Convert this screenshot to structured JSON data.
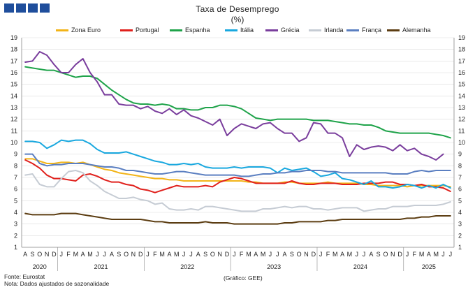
{
  "header": {
    "title": "Taxa de Desemprego",
    "subtitle": "(%)"
  },
  "footer": {
    "source": "Fonte: Eurostat",
    "note": "Nota: Dados ajustados de sazonalidade",
    "credit": "(Gráfico: GEE)"
  },
  "chart_data": {
    "type": "line",
    "title": "Taxa de Desemprego",
    "subtitle": "(%)",
    "ylim": [
      1,
      19
    ],
    "yticks": [
      1,
      2,
      3,
      4,
      5,
      6,
      7,
      8,
      9,
      10,
      11,
      12,
      13,
      14,
      15,
      16,
      17,
      18,
      19
    ],
    "grid": true,
    "legend_position": "top",
    "month_labels": [
      "A",
      "S",
      "O",
      "N",
      "D",
      "J",
      "F",
      "M",
      "A",
      "M",
      "J",
      "J",
      "A",
      "S",
      "O",
      "N",
      "D",
      "J",
      "F",
      "M",
      "A",
      "M",
      "J",
      "J",
      "A",
      "S",
      "O",
      "N",
      "D",
      "J",
      "F",
      "M",
      "A",
      "M",
      "J",
      "J",
      "A",
      "S",
      "O",
      "N",
      "D",
      "J",
      "F",
      "M",
      "A",
      "M",
      "J",
      "J",
      "A",
      "S",
      "O",
      "N",
      "D",
      "J",
      "F",
      "M",
      "A",
      "M",
      "J",
      "J"
    ],
    "years": [
      {
        "label": "2020",
        "start": 0,
        "end": 4
      },
      {
        "label": "2021",
        "start": 5,
        "end": 16
      },
      {
        "label": "2022",
        "start": 17,
        "end": 28
      },
      {
        "label": "2023",
        "start": 29,
        "end": 40
      },
      {
        "label": "2024",
        "start": 41,
        "end": 52
      },
      {
        "label": "2025",
        "start": 53,
        "end": 59
      }
    ],
    "series": [
      {
        "name": "Zona Euro",
        "color": "#f2b418",
        "values": [
          8.6,
          8.6,
          8.4,
          8.2,
          8.2,
          8.3,
          8.3,
          8.2,
          8.3,
          8.1,
          7.9,
          7.7,
          7.6,
          7.4,
          7.3,
          7.2,
          7.1,
          7.0,
          6.9,
          6.9,
          6.8,
          6.8,
          6.7,
          6.7,
          6.7,
          6.7,
          6.7,
          6.7,
          6.7,
          6.7,
          6.7,
          6.6,
          6.6,
          6.5,
          6.5,
          6.5,
          6.6,
          6.6,
          6.5,
          6.5,
          6.5,
          6.5,
          6.6,
          6.5,
          6.5,
          6.5,
          6.5,
          6.4,
          6.4,
          6.3,
          6.3,
          6.3,
          6.3,
          6.2,
          6.3,
          6.3,
          6.3,
          6.3,
          6.3,
          6.2
        ]
      },
      {
        "name": "Portugal",
        "color": "#e0201c",
        "values": [
          8.5,
          8.2,
          7.8,
          7.2,
          6.9,
          6.9,
          6.8,
          6.7,
          7.2,
          7.3,
          7.1,
          6.8,
          6.6,
          6.6,
          6.4,
          6.3,
          6.0,
          5.9,
          5.7,
          5.9,
          6.1,
          6.3,
          6.2,
          6.2,
          6.2,
          6.3,
          6.2,
          6.6,
          6.8,
          7.0,
          6.9,
          6.7,
          6.5,
          6.5,
          6.5,
          6.5,
          6.5,
          6.7,
          6.5,
          6.4,
          6.4,
          6.5,
          6.5,
          6.5,
          6.4,
          6.4,
          6.4,
          6.5,
          6.5,
          6.5,
          6.6,
          6.6,
          6.4,
          6.4,
          6.3,
          6.4,
          6.2,
          6.2,
          6.1,
          5.8
        ]
      },
      {
        "name": "Espanha",
        "color": "#1fa34a",
        "values": [
          16.5,
          16.4,
          16.3,
          16.2,
          16.2,
          16.0,
          15.8,
          15.6,
          15.7,
          15.7,
          15.5,
          15.0,
          14.5,
          14.1,
          13.7,
          13.4,
          13.3,
          13.3,
          13.2,
          13.3,
          13.2,
          12.9,
          12.9,
          12.8,
          12.8,
          13.0,
          13.0,
          13.2,
          13.2,
          13.1,
          12.9,
          12.5,
          12.1,
          12.0,
          11.9,
          12.0,
          12.0,
          12.0,
          12.0,
          12.0,
          11.9,
          11.9,
          11.9,
          11.8,
          11.7,
          11.6,
          11.6,
          11.5,
          11.5,
          11.3,
          11.0,
          10.9,
          10.8,
          10.8,
          10.8,
          10.8,
          10.8,
          10.7,
          10.6,
          10.4
        ]
      },
      {
        "name": "Itália",
        "color": "#19a8df",
        "values": [
          10.1,
          10.1,
          10.0,
          9.5,
          9.8,
          10.2,
          10.1,
          10.2,
          10.2,
          9.9,
          9.4,
          9.1,
          9.1,
          9.1,
          9.2,
          9.0,
          8.8,
          8.6,
          8.4,
          8.3,
          8.1,
          8.1,
          8.2,
          8.1,
          8.2,
          7.9,
          7.8,
          7.8,
          7.8,
          7.9,
          7.8,
          7.9,
          7.9,
          7.9,
          7.8,
          7.4,
          7.8,
          7.6,
          7.7,
          7.8,
          7.5,
          7.1,
          7.2,
          7.4,
          6.9,
          6.8,
          6.6,
          6.4,
          6.7,
          6.2,
          6.2,
          6.1,
          6.2,
          6.4,
          6.3,
          6.1,
          6.3,
          6.1,
          6.4,
          6.1
        ]
      },
      {
        "name": "Grécia",
        "color": "#7a3e9d",
        "values": [
          16.9,
          17.0,
          17.8,
          17.5,
          16.7,
          16.0,
          16.0,
          16.7,
          17.2,
          16.0,
          15.2,
          14.1,
          14.1,
          13.3,
          13.2,
          13.2,
          12.9,
          13.1,
          12.7,
          12.5,
          12.9,
          12.4,
          12.8,
          12.3,
          12.1,
          11.8,
          11.5,
          12.0,
          10.6,
          11.2,
          11.6,
          11.4,
          11.2,
          11.6,
          11.7,
          11.2,
          10.8,
          10.8,
          10.1,
          10.4,
          11.7,
          11.6,
          10.8,
          10.8,
          10.4,
          8.8,
          9.8,
          9.4,
          9.6,
          9.7,
          9.6,
          9.3,
          9.8,
          9.3,
          9.5,
          9.0,
          8.8,
          8.5,
          9.0,
          null
        ]
      },
      {
        "name": "Irlanda",
        "color": "#c6ccd4",
        "values": [
          7.2,
          7.3,
          6.4,
          6.2,
          6.2,
          6.9,
          7.5,
          7.6,
          7.4,
          6.7,
          6.3,
          5.8,
          5.5,
          5.2,
          5.2,
          5.3,
          5.1,
          5.0,
          4.7,
          4.8,
          4.3,
          4.2,
          4.2,
          4.3,
          4.2,
          4.5,
          4.5,
          4.4,
          4.3,
          4.2,
          4.1,
          4.1,
          4.1,
          4.3,
          4.3,
          4.4,
          4.5,
          4.4,
          4.5,
          4.5,
          4.3,
          4.3,
          4.2,
          4.3,
          4.4,
          4.4,
          4.4,
          4.1,
          4.2,
          4.3,
          4.3,
          4.5,
          4.5,
          4.5,
          4.6,
          4.6,
          4.6,
          4.6,
          4.7,
          4.9
        ]
      },
      {
        "name": "França",
        "color": "#5b7fc1",
        "values": [
          9.0,
          9.0,
          8.2,
          8.0,
          8.1,
          8.1,
          8.2,
          8.2,
          8.2,
          8.1,
          8.0,
          7.9,
          7.9,
          7.8,
          7.6,
          7.6,
          7.5,
          7.4,
          7.3,
          7.3,
          7.4,
          7.5,
          7.5,
          7.4,
          7.3,
          7.2,
          7.2,
          7.2,
          7.2,
          7.2,
          7.1,
          7.1,
          7.2,
          7.3,
          7.3,
          7.4,
          7.4,
          7.5,
          7.5,
          7.6,
          7.6,
          7.6,
          7.5,
          7.5,
          7.4,
          7.4,
          7.4,
          7.4,
          7.4,
          7.4,
          7.4,
          7.3,
          7.3,
          7.3,
          7.5,
          7.6,
          7.5,
          7.6,
          7.6,
          7.6
        ]
      },
      {
        "name": "Alemanha",
        "color": "#5c3d12",
        "values": [
          3.9,
          3.8,
          3.8,
          3.8,
          3.8,
          3.9,
          3.9,
          3.9,
          3.8,
          3.7,
          3.6,
          3.5,
          3.4,
          3.4,
          3.4,
          3.4,
          3.4,
          3.3,
          3.2,
          3.2,
          3.1,
          3.1,
          3.1,
          3.1,
          3.1,
          3.2,
          3.1,
          3.1,
          3.1,
          3.0,
          3.0,
          3.0,
          3.0,
          3.0,
          3.0,
          3.0,
          3.1,
          3.1,
          3.2,
          3.2,
          3.2,
          3.2,
          3.3,
          3.3,
          3.4,
          3.4,
          3.4,
          3.4,
          3.4,
          3.4,
          3.4,
          3.4,
          3.4,
          3.5,
          3.5,
          3.6,
          3.6,
          3.7,
          3.7,
          3.7
        ]
      }
    ]
  }
}
